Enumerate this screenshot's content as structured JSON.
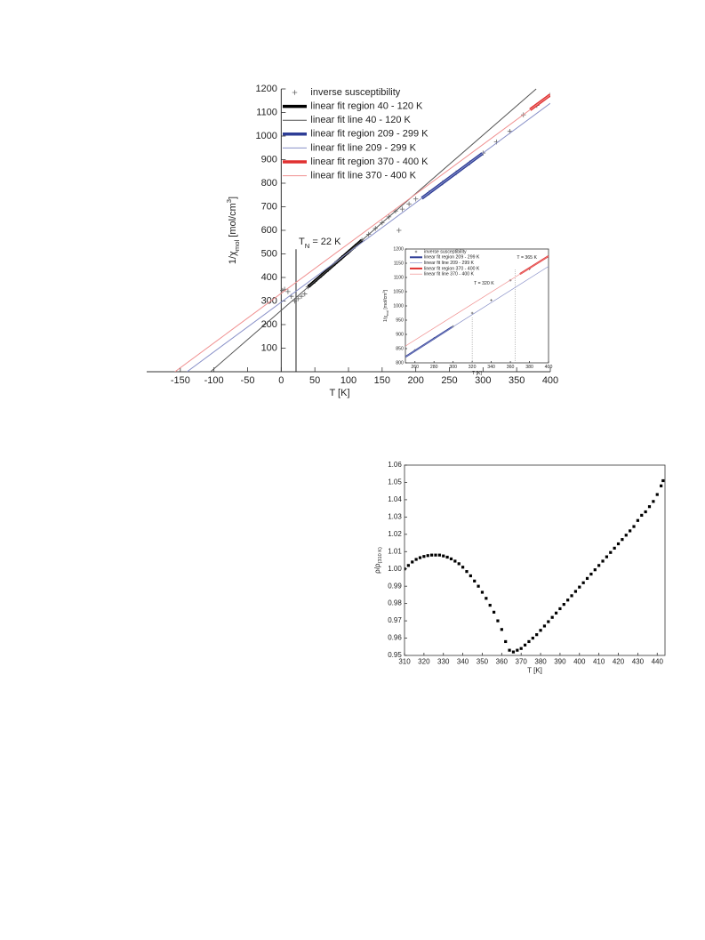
{
  "chart_data": [
    {
      "type": "line",
      "xlabel": "T [K]",
      "ylabel": [
        {
          "text": "1/χ"
        },
        {
          "text": "mol",
          "sub": true
        },
        {
          "text": " [mol/cm"
        },
        {
          "text": "3",
          "sup": true
        },
        {
          "text": "]"
        }
      ],
      "xlim": [
        -200,
        400
      ],
      "ylim": [
        0,
        1200
      ],
      "xticks": [
        -150,
        -100,
        -50,
        0,
        50,
        100,
        150,
        200,
        250,
        300,
        350,
        400
      ],
      "yticks": [
        100,
        200,
        300,
        400,
        500,
        600,
        700,
        800,
        900,
        1000,
        1100,
        1200
      ],
      "legend": "upper left",
      "series": [
        {
          "name": "inverse susceptibility",
          "mode": "markers",
          "color": "#666666",
          "x": [
            2,
            5,
            10,
            15,
            20,
            25,
            30,
            35,
            40,
            50,
            60,
            70,
            80,
            90,
            100,
            110,
            120,
            130,
            140,
            150,
            160,
            170,
            175,
            180,
            190,
            200,
            220,
            240,
            260,
            280,
            300,
            320,
            340,
            360,
            380,
            400
          ],
          "values": [
            345,
            350,
            340,
            320,
            300,
            310,
            320,
            330,
            360,
            384,
            409,
            434,
            459,
            484,
            508,
            533,
            558,
            583,
            608,
            632,
            657,
            682,
            600,
            690,
            712,
            733,
            760,
            802,
            844,
            886,
            928,
            975,
            1020,
            1090,
            1130,
            1175
          ]
        },
        {
          "name": "linear fit region 40 - 120 K",
          "mode": "lines",
          "width": 3.5,
          "color": "#000000",
          "x": [
            40,
            120
          ],
          "values": [
            360,
            558
          ]
        },
        {
          "name": "linear fit line 40 - 120 K",
          "mode": "lines",
          "width": 1,
          "color": "#555555",
          "x": [
            -105,
            379
          ],
          "values": [
            0,
            1200
          ]
        },
        {
          "name": "linear fit region 209 - 299 K",
          "mode": "lines",
          "width": 3.5,
          "color": "#2e3d96",
          "x": [
            209,
            299
          ],
          "values": [
            736,
            926
          ]
        },
        {
          "name": "linear fit line 209 - 299 K",
          "mode": "lines",
          "width": 1,
          "color": "#8890c8",
          "x": [
            -140,
            400
          ],
          "values": [
            0,
            1139
          ]
        },
        {
          "name": "linear fit region 370 - 400 K",
          "mode": "lines",
          "width": 3.5,
          "color": "#e03030",
          "x": [
            370,
            400
          ],
          "values": [
            1112,
            1175
          ]
        },
        {
          "name": "linear fit line 370 - 400 K",
          "mode": "lines",
          "width": 1,
          "color": "#f09090",
          "x": [
            -158,
            400
          ],
          "values": [
            0,
            1175
          ]
        }
      ],
      "annotations": [
        {
          "parts": [
            {
              "text": "T"
            },
            {
              "text": "N",
              "sub": true
            },
            {
              "text": " = 22 K"
            }
          ],
          "x": 22
        }
      ]
    },
    {
      "type": "line",
      "xlabel": "T [K]",
      "ylabel": [
        {
          "text": "1/χ"
        },
        {
          "text": "mol",
          "sub": true
        },
        {
          "text": " [mol/cm"
        },
        {
          "text": "3",
          "sup": true
        },
        {
          "text": "]"
        }
      ],
      "xlim": [
        250,
        400
      ],
      "ylim": [
        800,
        1200
      ],
      "xticks": [
        260,
        280,
        300,
        320,
        340,
        360,
        380,
        400
      ],
      "yticks": [
        800,
        850,
        900,
        950,
        1000,
        1050,
        1100,
        1150,
        1200
      ],
      "legend": "upper left",
      "series": [
        {
          "name": "inverse susceptibility",
          "mode": "markers",
          "color": "#666666",
          "x": [
            260,
            280,
            300,
            320,
            340,
            360,
            380,
            400
          ],
          "values": [
            844,
            886,
            928,
            975,
            1020,
            1090,
            1130,
            1175
          ]
        },
        {
          "name": "linear fit region 209 - 299 K",
          "mode": "lines",
          "width": 2,
          "color": "#2e3d96",
          "x": [
            250,
            299
          ],
          "values": [
            821,
            926
          ]
        },
        {
          "name": "linear fit line 209 - 299 K",
          "mode": "lines",
          "width": 0.7,
          "color": "#8890c8",
          "x": [
            250,
            400
          ],
          "values": [
            821,
            1139
          ]
        },
        {
          "name": "linear fit region 370 - 400 K",
          "mode": "lines",
          "width": 2,
          "color": "#e03030",
          "x": [
            370,
            400
          ],
          "values": [
            1112,
            1175
          ]
        },
        {
          "name": "linear fit line 370 - 400 K",
          "mode": "lines",
          "width": 0.7,
          "color": "#f09090",
          "x": [
            250,
            400
          ],
          "values": [
            859,
            1175
          ]
        }
      ],
      "annotations": [
        {
          "parts": [
            {
              "text": "T = 320 K"
            }
          ],
          "x": 320
        },
        {
          "parts": [
            {
              "text": "T = 365 K"
            }
          ],
          "x": 365
        }
      ]
    },
    {
      "type": "scatter",
      "xlabel": "T [K]",
      "ylabel": [
        {
          "text": "ρ/ρ"
        },
        {
          "text": "(310 K)",
          "sub": true
        }
      ],
      "xlim": [
        310,
        444
      ],
      "ylim": [
        0.95,
        1.06
      ],
      "xticks": [
        310,
        320,
        330,
        340,
        350,
        360,
        370,
        380,
        390,
        400,
        410,
        420,
        430,
        440
      ],
      "yticks": [
        0.95,
        0.96,
        0.97,
        0.98,
        0.99,
        {
          "value": 1,
          "label": "1.00"
        },
        1.01,
        1.02,
        1.03,
        1.04,
        1.05,
        1.06
      ],
      "series": [
        {
          "mode": "markers",
          "color": "#000000",
          "x": [
            310,
            312,
            314,
            316,
            318,
            320,
            322,
            324,
            326,
            328,
            330,
            332,
            334,
            336,
            338,
            340,
            342,
            344,
            346,
            348,
            350,
            352,
            354,
            356,
            358,
            360,
            362,
            364,
            366,
            368,
            370,
            372,
            374,
            376,
            378,
            380,
            382,
            384,
            386,
            388,
            390,
            392,
            394,
            396,
            398,
            400,
            402,
            404,
            406,
            408,
            410,
            412,
            414,
            416,
            418,
            420,
            422,
            424,
            426,
            428,
            430,
            432,
            434,
            436,
            438,
            440,
            442,
            443
          ],
          "values": [
            1.0,
            1.002,
            1.004,
            1.0055,
            1.0065,
            1.0072,
            1.0077,
            1.008,
            1.008,
            1.008,
            1.0075,
            1.0068,
            1.0058,
            1.0045,
            1.003,
            1.001,
            0.9985,
            0.996,
            0.993,
            0.99,
            0.9865,
            0.983,
            0.979,
            0.975,
            0.97,
            0.965,
            0.958,
            0.953,
            0.952,
            0.953,
            0.954,
            0.956,
            0.958,
            0.96,
            0.962,
            0.9645,
            0.967,
            0.9695,
            0.972,
            0.9745,
            0.977,
            0.9795,
            0.982,
            0.9845,
            0.987,
            0.9895,
            0.992,
            0.9945,
            0.997,
            0.9995,
            1.002,
            1.0045,
            1.007,
            1.0095,
            1.012,
            1.0145,
            1.017,
            1.0195,
            1.022,
            1.0245,
            1.028,
            1.031,
            1.033,
            1.036,
            1.039,
            1.043,
            1.048,
            1.051
          ]
        }
      ]
    }
  ]
}
